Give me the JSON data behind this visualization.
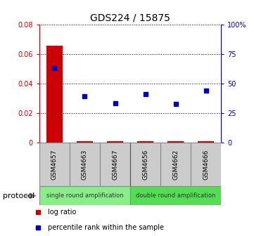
{
  "title": "GDS224 / 15875",
  "samples": [
    "GSM4657",
    "GSM4663",
    "GSM4667",
    "GSM4656",
    "GSM4662",
    "GSM4666"
  ],
  "log_ratio": [
    0.066,
    0.001,
    0.001,
    0.001,
    0.001,
    0.001
  ],
  "percentile_rank": [
    63.5,
    39.5,
    33.5,
    41.5,
    33.0,
    44.0
  ],
  "ylim_left": [
    0,
    0.08
  ],
  "ylim_right": [
    0,
    100
  ],
  "yticks_left": [
    0,
    0.02,
    0.04,
    0.06,
    0.08
  ],
  "yticks_right": [
    0,
    25,
    50,
    75,
    100
  ],
  "ytick_labels_left": [
    "0",
    "0.02",
    "0.04",
    "0.06",
    "0.08"
  ],
  "ytick_labels_right": [
    "0",
    "25",
    "50",
    "75",
    "100%"
  ],
  "left_axis_color": "#cc0000",
  "right_axis_color": "#0000bb",
  "bar_color": "#cc0000",
  "dot_color": "#0000bb",
  "bg_color": "#ffffff",
  "sample_box_color": "#cccccc",
  "protocol_groups": [
    {
      "label": "single round amplification",
      "start": 0,
      "end": 3,
      "color": "#88ee88"
    },
    {
      "label": "double round amplification",
      "start": 3,
      "end": 6,
      "color": "#55dd55"
    }
  ],
  "legend_items": [
    {
      "label": "log ratio",
      "color": "#cc0000"
    },
    {
      "label": "percentile rank within the sample",
      "color": "#0000bb"
    }
  ],
  "protocol_label": "protocol",
  "figsize": [
    3.61,
    3.36
  ],
  "dpi": 100
}
